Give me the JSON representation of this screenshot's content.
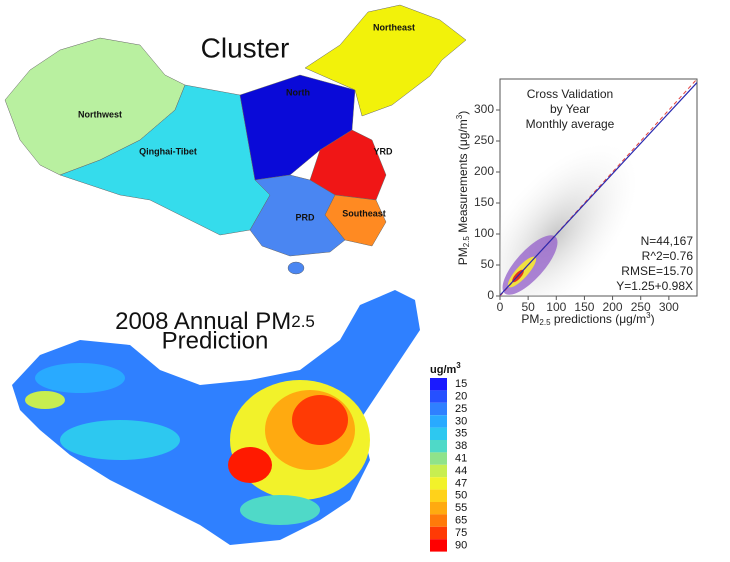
{
  "cluster_map": {
    "title": "Cluster",
    "regions": [
      {
        "name": "Northwest",
        "color": "#b9f0a0"
      },
      {
        "name": "Qinghai-Tibet",
        "color": "#35dcec"
      },
      {
        "name": "North",
        "color": "#0a0ad8"
      },
      {
        "name": "Northeast",
        "color": "#f2f20a"
      },
      {
        "name": "YRD",
        "color": "#f01616"
      },
      {
        "name": "PRD",
        "color": "#4a86f2"
      },
      {
        "name": "Southeast",
        "color": "#ff8a22"
      }
    ]
  },
  "prediction_map": {
    "title": "2008 Annual PM",
    "title_subscript": "2.5",
    "title_line2": "Prediction"
  },
  "legend": {
    "unit": "ug/m",
    "unit_superscript": "3",
    "levels": [
      15,
      20,
      25,
      30,
      35,
      38,
      41,
      44,
      47,
      50,
      55,
      65,
      75,
      90
    ],
    "colors": [
      "#1a1aff",
      "#2650ff",
      "#2f80ff",
      "#29aaff",
      "#2dc8f0",
      "#4fd9c8",
      "#8fe38a",
      "#c8ee50",
      "#f2f22a",
      "#ffd21a",
      "#ffaa10",
      "#ff7a0a",
      "#ff3a05",
      "#ff0000"
    ]
  },
  "chart_data": {
    "type": "scatter",
    "annotation": [
      "Cross Validation",
      "by Year",
      "Monthly average"
    ],
    "stats": [
      "N=44,167",
      "R^2=0.76",
      "RMSE=15.70",
      "Y=1.25+0.98X"
    ],
    "x_label": [
      "PM",
      "2.5",
      " predictions (μg/m",
      "3",
      ")"
    ],
    "y_label": [
      "PM",
      "2.5",
      " Measurements (μg/m",
      "3",
      ")"
    ],
    "xlim": [
      0,
      350
    ],
    "ylim": [
      0,
      350
    ],
    "xticks": [
      0,
      50,
      100,
      150,
      200,
      250,
      300
    ],
    "yticks": [
      0,
      50,
      100,
      150,
      200,
      250,
      300
    ],
    "fit_line": {
      "intercept": 1.25,
      "slope": 0.98,
      "color": "#2a2ab0"
    },
    "identity_line_color": "#e04040"
  }
}
